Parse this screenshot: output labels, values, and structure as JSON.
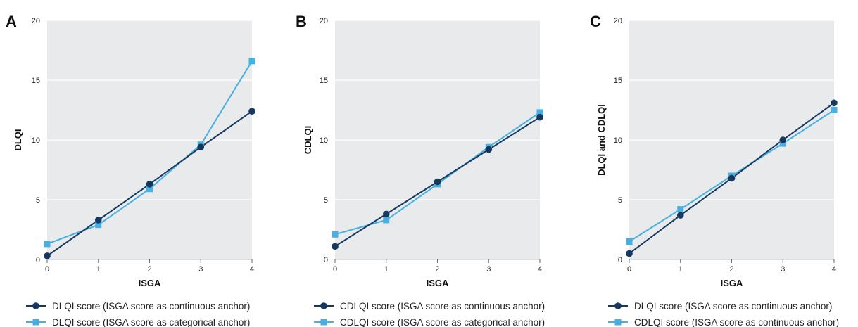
{
  "colors": {
    "continuous": "#16385e",
    "categorical": "#47b0e1",
    "plot_bg": "#e9eaec",
    "grid": "#ffffff"
  },
  "chart_data": [
    {
      "type": "line",
      "panel": "A",
      "xlabel": "ISGA",
      "ylabel": "DLQI",
      "x": [
        0,
        1,
        2,
        3,
        4
      ],
      "xlim": [
        0,
        4
      ],
      "ylim": [
        0,
        20
      ],
      "yticks": [
        0,
        5,
        10,
        15,
        20
      ],
      "grid": true,
      "legend_position": "bottom",
      "series": [
        {
          "name": "DLQI score (ISGA score as continuous anchor)",
          "marker": "circle",
          "color": "#16385e",
          "values": [
            0.3,
            3.3,
            6.3,
            9.4,
            12.4
          ]
        },
        {
          "name": "DLQI score (ISGA score as categorical anchor)",
          "marker": "square",
          "color": "#47b0e1",
          "values": [
            1.3,
            2.9,
            5.9,
            9.6,
            16.6
          ]
        }
      ]
    },
    {
      "type": "line",
      "panel": "B",
      "xlabel": "ISGA",
      "ylabel": "CDLQI",
      "x": [
        0,
        1,
        2,
        3,
        4
      ],
      "xlim": [
        0,
        4
      ],
      "ylim": [
        0,
        20
      ],
      "yticks": [
        0,
        5,
        10,
        15,
        20
      ],
      "grid": true,
      "legend_position": "bottom",
      "series": [
        {
          "name": "CDLQI score (ISGA score as continuous anchor)",
          "marker": "circle",
          "color": "#16385e",
          "values": [
            1.1,
            3.8,
            6.5,
            9.2,
            11.9
          ]
        },
        {
          "name": "CDLQI score (ISGA score as categorical anchor)",
          "marker": "square",
          "color": "#47b0e1",
          "values": [
            2.1,
            3.3,
            6.3,
            9.4,
            12.3
          ]
        }
      ]
    },
    {
      "type": "line",
      "panel": "C",
      "xlabel": "ISGA",
      "ylabel": "DLQI and CDLQI",
      "x": [
        0,
        1,
        2,
        3,
        4
      ],
      "xlim": [
        0,
        4
      ],
      "ylim": [
        0,
        20
      ],
      "yticks": [
        0,
        5,
        10,
        15,
        20
      ],
      "grid": true,
      "legend_position": "bottom",
      "series": [
        {
          "name": "DLQI score (ISGA score as continuous anchor)",
          "marker": "circle",
          "color": "#16385e",
          "values": [
            0.5,
            3.7,
            6.8,
            10.0,
            13.1
          ]
        },
        {
          "name": "CDLQI score (ISGA score as continuous anchor)",
          "marker": "square",
          "color": "#47b0e1",
          "values": [
            1.5,
            4.2,
            7.0,
            9.7,
            12.5
          ]
        }
      ]
    }
  ]
}
